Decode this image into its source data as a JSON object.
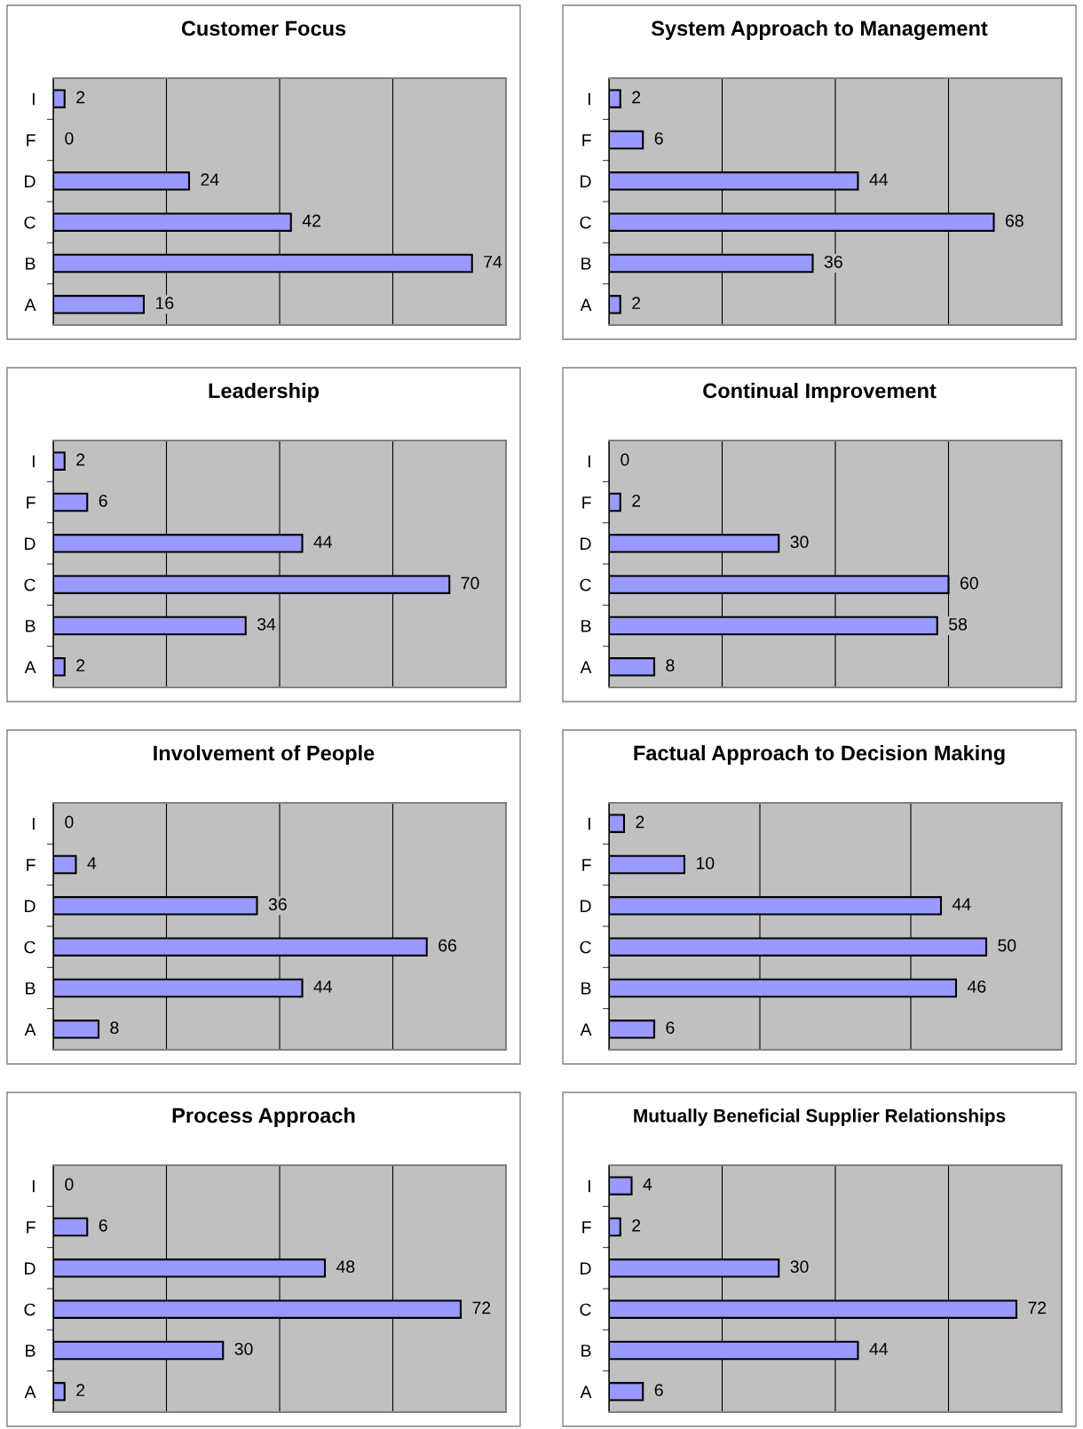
{
  "chart_data": [
    {
      "type": "bar",
      "orientation": "horizontal",
      "title": "Customer Focus",
      "categories": [
        "I",
        "F",
        "D",
        "C",
        "B",
        "A"
      ],
      "values": [
        2,
        0,
        24,
        42,
        74,
        16
      ],
      "color": "#9999ff",
      "xlim": [
        0,
        80
      ],
      "xticks": [
        {
          "value": 0,
          "label": null
        },
        {
          "value": 20,
          "label": null
        },
        {
          "value": 40,
          "label": null
        },
        {
          "value": 60,
          "label": null
        },
        {
          "value": 80,
          "label": null
        }
      ],
      "tick_labels": "y",
      "grid": "x",
      "data_labels": true,
      "legend": false
    },
    {
      "type": "bar",
      "orientation": "horizontal",
      "title": "System Approach to Management",
      "categories": [
        "I",
        "F",
        "D",
        "C",
        "B",
        "A"
      ],
      "values": [
        2,
        6,
        44,
        68,
        36,
        2
      ],
      "color": "#9999ff",
      "xlim": [
        0,
        80
      ],
      "xticks": [
        {
          "value": 0,
          "label": null
        },
        {
          "value": 20,
          "label": null
        },
        {
          "value": 40,
          "label": null
        },
        {
          "value": 60,
          "label": null
        },
        {
          "value": 80,
          "label": null
        }
      ],
      "tick_labels": "y",
      "grid": "x",
      "data_labels": true,
      "legend": false
    },
    {
      "type": "bar",
      "orientation": "horizontal",
      "title": "Leadership",
      "categories": [
        "I",
        "F",
        "D",
        "C",
        "B",
        "A"
      ],
      "values": [
        2,
        6,
        44,
        70,
        34,
        2
      ],
      "color": "#9999ff",
      "xlim": [
        0,
        80
      ],
      "xticks": [
        {
          "value": 0,
          "label": null
        },
        {
          "value": 20,
          "label": null
        },
        {
          "value": 40,
          "label": null
        },
        {
          "value": 60,
          "label": null
        },
        {
          "value": 80,
          "label": null
        }
      ],
      "tick_labels": "y",
      "grid": "x",
      "data_labels": true,
      "legend": false
    },
    {
      "type": "bar",
      "orientation": "horizontal",
      "title": "Continual Improvement",
      "categories": [
        "I",
        "F",
        "D",
        "C",
        "B",
        "A"
      ],
      "values": [
        0,
        2,
        30,
        60,
        58,
        8
      ],
      "color": "#9999ff",
      "xlim": [
        0,
        80
      ],
      "xticks": [
        {
          "value": 0,
          "label": null
        },
        {
          "value": 20,
          "label": null
        },
        {
          "value": 40,
          "label": null
        },
        {
          "value": 60,
          "label": null
        },
        {
          "value": 80,
          "label": null
        }
      ],
      "tick_labels": "y",
      "grid": "x",
      "data_labels": true,
      "legend": false
    },
    {
      "type": "bar",
      "orientation": "horizontal",
      "title": "Involvement of People",
      "categories": [
        "I",
        "F",
        "D",
        "C",
        "B",
        "A"
      ],
      "values": [
        0,
        4,
        36,
        66,
        44,
        8
      ],
      "color": "#9999ff",
      "xlim": [
        0,
        80
      ],
      "xticks": [
        {
          "value": 0,
          "label": null
        },
        {
          "value": 20,
          "label": null
        },
        {
          "value": 40,
          "label": null
        },
        {
          "value": 60,
          "label": null
        },
        {
          "value": 80,
          "label": null
        }
      ],
      "tick_labels": "y",
      "grid": "x",
      "data_labels": true,
      "legend": false
    },
    {
      "type": "bar",
      "orientation": "horizontal",
      "title": "Factual Approach to Decision Making",
      "categories": [
        "I",
        "F",
        "D",
        "C",
        "B",
        "A"
      ],
      "values": [
        2,
        10,
        44,
        50,
        46,
        6
      ],
      "color": "#9999ff",
      "xlim": [
        0,
        60
      ],
      "xticks": [
        {
          "value": 0,
          "label": null
        },
        {
          "value": 20,
          "label": null
        },
        {
          "value": 40,
          "label": null
        },
        {
          "value": 60,
          "label": null
        }
      ],
      "tick_labels": "y",
      "grid": "x",
      "data_labels": true,
      "legend": false
    },
    {
      "type": "bar",
      "orientation": "horizontal",
      "title": "Process Approach",
      "categories": [
        "I",
        "F",
        "D",
        "C",
        "B",
        "A"
      ],
      "values": [
        0,
        6,
        48,
        72,
        30,
        2
      ],
      "color": "#9999ff",
      "xlim": [
        0,
        80
      ],
      "xticks": [
        {
          "value": 0,
          "label": null
        },
        {
          "value": 20,
          "label": null
        },
        {
          "value": 40,
          "label": null
        },
        {
          "value": 60,
          "label": null
        },
        {
          "value": 80,
          "label": null
        }
      ],
      "tick_labels": "y",
      "grid": "x",
      "data_labels": true,
      "legend": false
    },
    {
      "type": "bar",
      "orientation": "horizontal",
      "title": "Mutually Beneficial Supplier Relationships",
      "categories": [
        "I",
        "F",
        "D",
        "C",
        "B",
        "A"
      ],
      "values": [
        4,
        2,
        30,
        72,
        44,
        6
      ],
      "color": "#9999ff",
      "xlim": [
        0,
        80
      ],
      "xticks": [
        {
          "value": 0,
          "label": null
        },
        {
          "value": 20,
          "label": null
        },
        {
          "value": 40,
          "label": null
        },
        {
          "value": 60,
          "label": null
        },
        {
          "value": 80,
          "label": null
        }
      ],
      "tick_labels": "y",
      "grid": "x",
      "data_labels": true,
      "legend": false
    }
  ]
}
